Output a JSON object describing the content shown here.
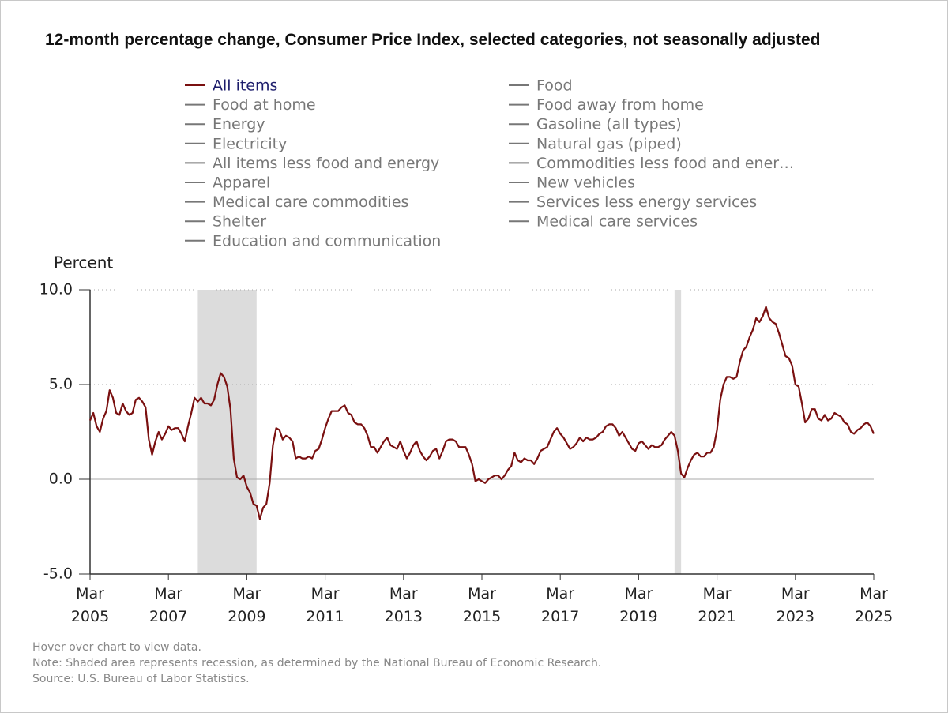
{
  "chart_data": {
    "type": "line",
    "title": "12-month percentage change, Consumer Price Index, selected categories, not seasonally adjusted",
    "y_label": "Percent",
    "notes": [
      "Hover over chart to view data.",
      "Note: Shaded area represents recession, as determined by the National Bureau of Economic Research.",
      "Source: U.S. Bureau of Labor Statistics."
    ],
    "ylim": [
      -5,
      10
    ],
    "yticks": [
      {
        "value": -5,
        "label": "-5.0"
      },
      {
        "value": 0,
        "label": "0.0"
      },
      {
        "value": 5,
        "label": "5.0"
      },
      {
        "value": 10,
        "label": "10.0"
      }
    ],
    "xticks": [
      "Mar 2005",
      "Mar 2007",
      "Mar 2009",
      "Mar 2011",
      "Mar 2013",
      "Mar 2015",
      "Mar 2017",
      "Mar 2019",
      "Mar 2021",
      "Mar 2023",
      "Mar 2025"
    ],
    "recessions": [
      [
        "Dec 2007",
        "Jun 2009"
      ],
      [
        "Feb 2020",
        "Apr 2020"
      ]
    ],
    "recession_color": "#dcdcdc",
    "x": [
      "Mar 2005",
      "Apr 2005",
      "May 2005",
      "Jun 2005",
      "Jul 2005",
      "Aug 2005",
      "Sep 2005",
      "Oct 2005",
      "Nov 2005",
      "Dec 2005",
      "Jan 2006",
      "Feb 2006",
      "Mar 2006",
      "Apr 2006",
      "May 2006",
      "Jun 2006",
      "Jul 2006",
      "Aug 2006",
      "Sep 2006",
      "Oct 2006",
      "Nov 2006",
      "Dec 2006",
      "Jan 2007",
      "Feb 2007",
      "Mar 2007",
      "Apr 2007",
      "May 2007",
      "Jun 2007",
      "Jul 2007",
      "Aug 2007",
      "Sep 2007",
      "Oct 2007",
      "Nov 2007",
      "Dec 2007",
      "Jan 2008",
      "Feb 2008",
      "Mar 2008",
      "Apr 2008",
      "May 2008",
      "Jun 2008",
      "Jul 2008",
      "Aug 2008",
      "Sep 2008",
      "Oct 2008",
      "Nov 2008",
      "Dec 2008",
      "Jan 2009",
      "Feb 2009",
      "Mar 2009",
      "Apr 2009",
      "May 2009",
      "Jun 2009",
      "Jul 2009",
      "Aug 2009",
      "Sep 2009",
      "Oct 2009",
      "Nov 2009",
      "Dec 2009",
      "Jan 2010",
      "Feb 2010",
      "Mar 2010",
      "Apr 2010",
      "May 2010",
      "Jun 2010",
      "Jul 2010",
      "Aug 2010",
      "Sep 2010",
      "Oct 2010",
      "Nov 2010",
      "Dec 2010",
      "Jan 2011",
      "Feb 2011",
      "Mar 2011",
      "Apr 2011",
      "May 2011",
      "Jun 2011",
      "Jul 2011",
      "Aug 2011",
      "Sep 2011",
      "Oct 2011",
      "Nov 2011",
      "Dec 2011",
      "Jan 2012",
      "Feb 2012",
      "Mar 2012",
      "Apr 2012",
      "May 2012",
      "Jun 2012",
      "Jul 2012",
      "Aug 2012",
      "Sep 2012",
      "Oct 2012",
      "Nov 2012",
      "Dec 2012",
      "Jan 2013",
      "Feb 2013",
      "Mar 2013",
      "Apr 2013",
      "May 2013",
      "Jun 2013",
      "Jul 2013",
      "Aug 2013",
      "Sep 2013",
      "Oct 2013",
      "Nov 2013",
      "Dec 2013",
      "Jan 2014",
      "Feb 2014",
      "Mar 2014",
      "Apr 2014",
      "May 2014",
      "Jun 2014",
      "Jul 2014",
      "Aug 2014",
      "Sep 2014",
      "Oct 2014",
      "Nov 2014",
      "Dec 2014",
      "Jan 2015",
      "Feb 2015",
      "Mar 2015",
      "Apr 2015",
      "May 2015",
      "Jun 2015",
      "Jul 2015",
      "Aug 2015",
      "Sep 2015",
      "Oct 2015",
      "Nov 2015",
      "Dec 2015",
      "Jan 2016",
      "Feb 2016",
      "Mar 2016",
      "Apr 2016",
      "May 2016",
      "Jun 2016",
      "Jul 2016",
      "Aug 2016",
      "Sep 2016",
      "Oct 2016",
      "Nov 2016",
      "Dec 2016",
      "Jan 2017",
      "Feb 2017",
      "Mar 2017",
      "Apr 2017",
      "May 2017",
      "Jun 2017",
      "Jul 2017",
      "Aug 2017",
      "Sep 2017",
      "Oct 2017",
      "Nov 2017",
      "Dec 2017",
      "Jan 2018",
      "Feb 2018",
      "Mar 2018",
      "Apr 2018",
      "May 2018",
      "Jun 2018",
      "Jul 2018",
      "Aug 2018",
      "Sep 2018",
      "Oct 2018",
      "Nov 2018",
      "Dec 2018",
      "Jan 2019",
      "Feb 2019",
      "Mar 2019",
      "Apr 2019",
      "May 2019",
      "Jun 2019",
      "Jul 2019",
      "Aug 2019",
      "Sep 2019",
      "Oct 2019",
      "Nov 2019",
      "Dec 2019",
      "Jan 2020",
      "Feb 2020",
      "Mar 2020",
      "Apr 2020",
      "May 2020",
      "Jun 2020",
      "Jul 2020",
      "Aug 2020",
      "Sep 2020",
      "Oct 2020",
      "Nov 2020",
      "Dec 2020",
      "Jan 2021",
      "Feb 2021",
      "Mar 2021",
      "Apr 2021",
      "May 2021",
      "Jun 2021",
      "Jul 2021",
      "Aug 2021",
      "Sep 2021",
      "Oct 2021",
      "Nov 2021",
      "Dec 2021",
      "Jan 2022",
      "Feb 2022",
      "Mar 2022",
      "Apr 2022",
      "May 2022",
      "Jun 2022",
      "Jul 2022",
      "Aug 2022",
      "Sep 2022",
      "Oct 2022",
      "Nov 2022",
      "Dec 2022",
      "Jan 2023",
      "Feb 2023",
      "Mar 2023",
      "Apr 2023",
      "May 2023",
      "Jun 2023",
      "Jul 2023",
      "Aug 2023",
      "Sep 2023",
      "Oct 2023",
      "Nov 2023",
      "Dec 2023",
      "Jan 2024",
      "Feb 2024",
      "Mar 2024",
      "Apr 2024",
      "May 2024",
      "Jun 2024",
      "Jul 2024",
      "Aug 2024",
      "Sep 2024",
      "Oct 2024",
      "Nov 2024",
      "Dec 2024",
      "Jan 2025",
      "Feb 2025",
      "Mar 2025"
    ],
    "series": [
      {
        "name": "All items",
        "color": "#7a1010",
        "visible": true,
        "values": [
          3.1,
          3.5,
          2.8,
          2.5,
          3.2,
          3.6,
          4.7,
          4.3,
          3.5,
          3.4,
          4.0,
          3.6,
          3.4,
          3.5,
          4.2,
          4.3,
          4.1,
          3.8,
          2.1,
          1.3,
          2.0,
          2.5,
          2.1,
          2.4,
          2.8,
          2.6,
          2.7,
          2.7,
          2.4,
          2.0,
          2.8,
          3.5,
          4.3,
          4.1,
          4.3,
          4.0,
          4.0,
          3.9,
          4.2,
          5.0,
          5.6,
          5.4,
          4.9,
          3.7,
          1.1,
          0.1,
          0.0,
          0.2,
          -0.4,
          -0.7,
          -1.3,
          -1.4,
          -2.1,
          -1.5,
          -1.3,
          -0.2,
          1.8,
          2.7,
          2.6,
          2.1,
          2.3,
          2.2,
          2.0,
          1.1,
          1.2,
          1.1,
          1.1,
          1.2,
          1.1,
          1.5,
          1.6,
          2.1,
          2.7,
          3.2,
          3.6,
          3.6,
          3.6,
          3.8,
          3.9,
          3.5,
          3.4,
          3.0,
          2.9,
          2.9,
          2.7,
          2.3,
          1.7,
          1.7,
          1.4,
          1.7,
          2.0,
          2.2,
          1.8,
          1.7,
          1.6,
          2.0,
          1.5,
          1.1,
          1.4,
          1.8,
          2.0,
          1.5,
          1.2,
          1.0,
          1.2,
          1.5,
          1.6,
          1.1,
          1.5,
          2.0,
          2.1,
          2.1,
          2.0,
          1.7,
          1.7,
          1.7,
          1.3,
          0.8,
          -0.1,
          0.0,
          -0.1,
          -0.2,
          0.0,
          0.1,
          0.2,
          0.2,
          0.0,
          0.2,
          0.5,
          0.7,
          1.4,
          1.0,
          0.9,
          1.1,
          1.0,
          1.0,
          0.8,
          1.1,
          1.5,
          1.6,
          1.7,
          2.1,
          2.5,
          2.7,
          2.4,
          2.2,
          1.9,
          1.6,
          1.7,
          1.9,
          2.2,
          2.0,
          2.2,
          2.1,
          2.1,
          2.2,
          2.4,
          2.5,
          2.8,
          2.9,
          2.9,
          2.7,
          2.3,
          2.5,
          2.2,
          1.9,
          1.6,
          1.5,
          1.9,
          2.0,
          1.8,
          1.6,
          1.8,
          1.7,
          1.7,
          1.8,
          2.1,
          2.3,
          2.5,
          2.3,
          1.5,
          0.3,
          0.1,
          0.6,
          1.0,
          1.3,
          1.4,
          1.2,
          1.2,
          1.4,
          1.4,
          1.7,
          2.6,
          4.2,
          5.0,
          5.4,
          5.4,
          5.3,
          5.4,
          6.2,
          6.8,
          7.0,
          7.5,
          7.9,
          8.5,
          8.3,
          8.6,
          9.1,
          8.5,
          8.3,
          8.2,
          7.7,
          7.1,
          6.5,
          6.4,
          6.0,
          5.0,
          4.9,
          4.0,
          3.0,
          3.2,
          3.7,
          3.7,
          3.2,
          3.1,
          3.4,
          3.1,
          3.2,
          3.5,
          3.4,
          3.3,
          3.0,
          2.9,
          2.5,
          2.4,
          2.6,
          2.7,
          2.9,
          3.0,
          2.8,
          2.4
        ]
      },
      {
        "name": "Food at home",
        "color": "#777777",
        "visible": false
      },
      {
        "name": "Energy",
        "color": "#777777",
        "visible": false
      },
      {
        "name": "Electricity",
        "color": "#777777",
        "visible": false
      },
      {
        "name": "All items less food and energy",
        "color": "#777777",
        "visible": false
      },
      {
        "name": "Apparel",
        "color": "#777777",
        "visible": false
      },
      {
        "name": "Medical care commodities",
        "color": "#777777",
        "visible": false
      },
      {
        "name": "Shelter",
        "color": "#777777",
        "visible": false
      },
      {
        "name": "Education and communication",
        "color": "#777777",
        "visible": false
      },
      {
        "name": "Food",
        "color": "#777777",
        "visible": false
      },
      {
        "name": "Food away from home",
        "color": "#777777",
        "visible": false
      },
      {
        "name": "Gasoline (all types)",
        "color": "#777777",
        "visible": false
      },
      {
        "name": "Natural gas (piped)",
        "color": "#777777",
        "visible": false
      },
      {
        "name": "Commodities less food and ener…",
        "color": "#777777",
        "visible": false
      },
      {
        "name": "New vehicles",
        "color": "#777777",
        "visible": false
      },
      {
        "name": "Services less energy services",
        "color": "#777777",
        "visible": false
      },
      {
        "name": "Medical care services",
        "color": "#777777",
        "visible": false
      }
    ]
  }
}
